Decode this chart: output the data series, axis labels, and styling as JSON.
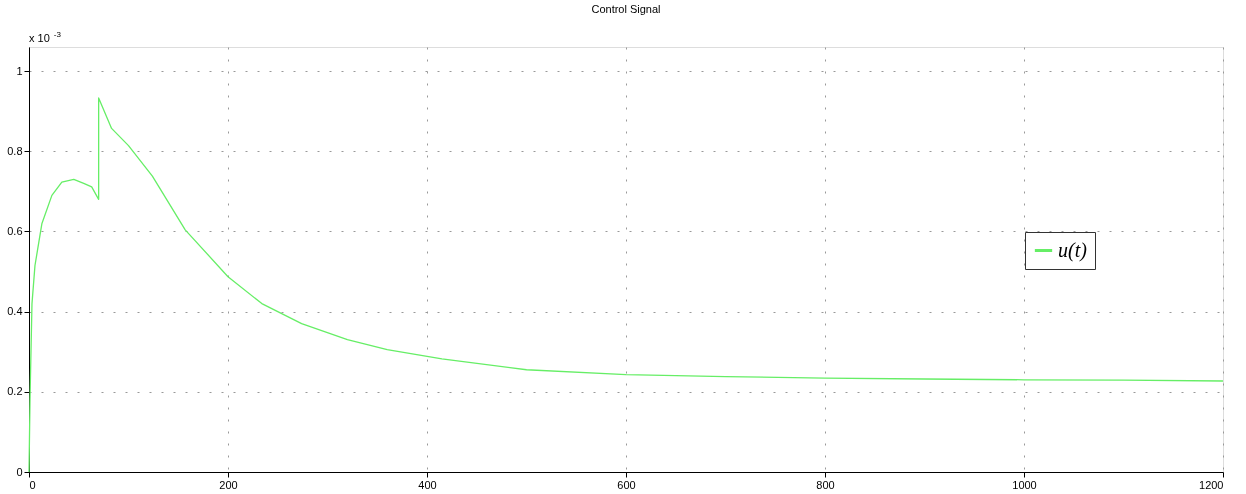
{
  "chart_data": {
    "type": "line",
    "title": "Control Signal",
    "x": [
      0,
      1,
      3,
      6,
      13,
      23,
      33,
      45,
      55,
      63,
      70,
      70,
      83,
      100,
      124,
      157,
      200,
      234,
      274,
      320,
      360,
      415,
      500,
      600,
      700,
      800,
      900,
      1000,
      1100,
      1200
    ],
    "series": [
      {
        "name": "u(t)",
        "color": "#66ee66",
        "values": [
          0,
          0.18,
          0.42,
          0.515,
          0.62,
          0.69,
          0.723,
          0.73,
          0.72,
          0.711,
          0.68,
          0.933,
          0.857,
          0.814,
          0.738,
          0.604,
          0.487,
          0.42,
          0.37,
          0.33,
          0.305,
          0.282,
          0.255,
          0.243,
          0.238,
          0.234,
          0.232,
          0.23,
          0.229,
          0.227
        ]
      }
    ],
    "xlim": [
      0,
      1200
    ],
    "xticks": [
      0,
      200,
      400,
      600,
      800,
      1000,
      1200
    ],
    "ylim": [
      0,
      1.06
    ],
    "yticks": [
      0,
      0.2,
      0.4,
      0.6,
      0.8,
      1
    ],
    "annotations": [
      "x 10$^{-3}$"
    ],
    "grid": true,
    "legend": "right",
    "marker": "none",
    "line_style": "solid"
  }
}
